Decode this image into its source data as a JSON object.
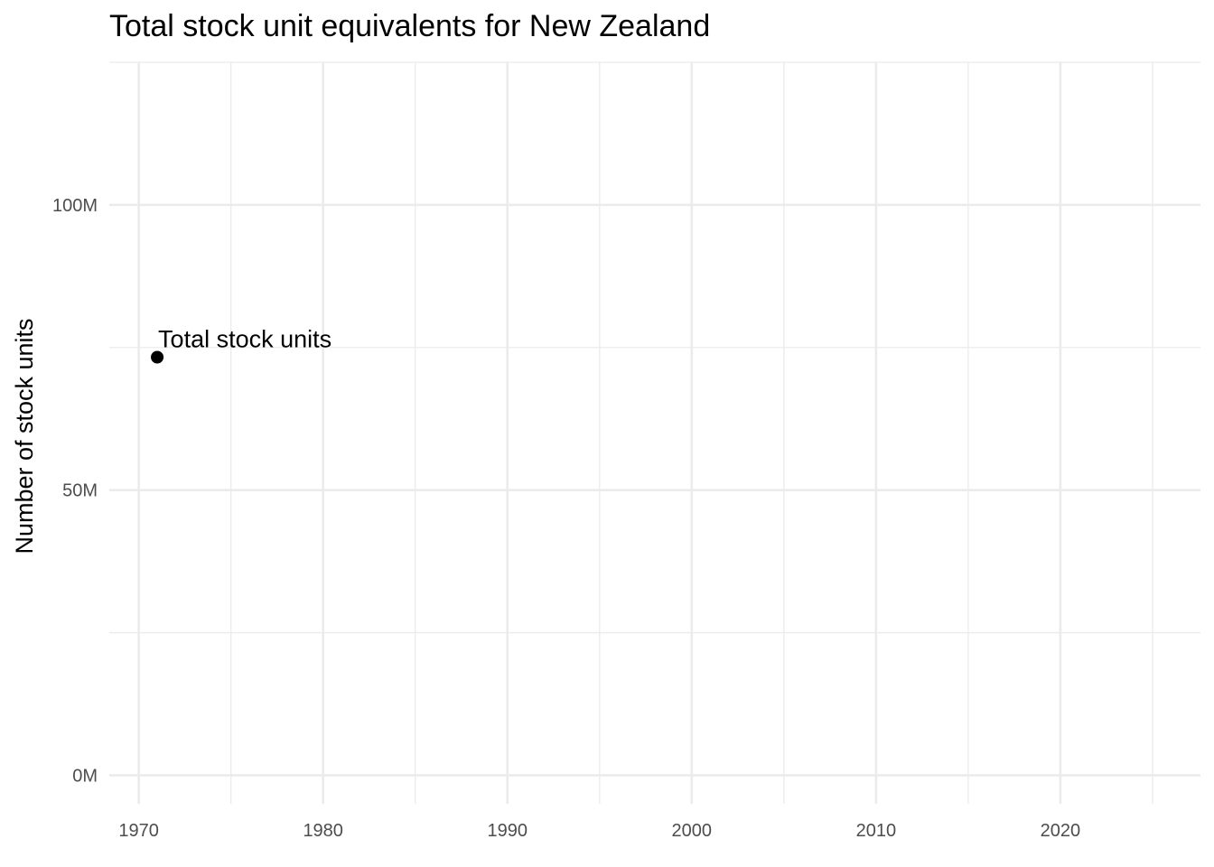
{
  "chart_data": {
    "type": "scatter",
    "title": "Total stock unit equivalents for New Zealand",
    "xlabel": "",
    "ylabel": "Number of stock units",
    "xlim": [
      1968.4,
      2027.6
    ],
    "ylim": [
      -5000000,
      125000000
    ],
    "x_ticks": [
      1970,
      1980,
      1990,
      2000,
      2010,
      2020
    ],
    "x_tick_labels": [
      "1970",
      "1980",
      "1990",
      "2000",
      "2010",
      "2020"
    ],
    "x_minor_ticks": [
      1975,
      1985,
      1995,
      2005,
      2015,
      2025
    ],
    "y_ticks": [
      0,
      50000000,
      100000000
    ],
    "y_tick_labels": [
      "0M",
      "50M",
      "100M"
    ],
    "y_minor_ticks": [
      25000000,
      75000000,
      125000000
    ],
    "grid": true,
    "series": [
      {
        "name": "Total stock units",
        "color": "#000000",
        "points": [
          {
            "x": 1971,
            "y": 73300000,
            "label": "Total stock units"
          }
        ]
      }
    ]
  }
}
